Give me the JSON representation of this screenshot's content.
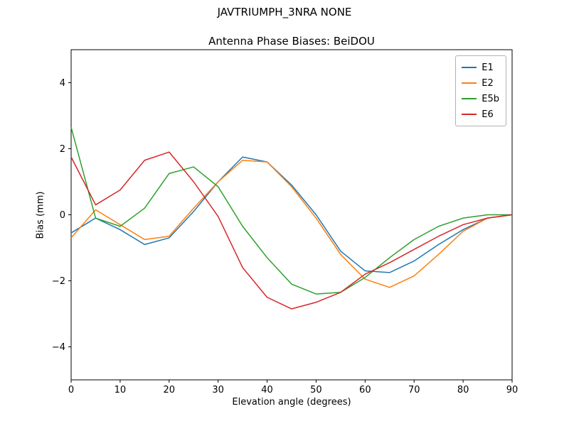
{
  "figure": {
    "suptitle": "JAVTRIUMPH_3NRA NONE",
    "title": "Antenna Phase Biases: BeiDOU"
  },
  "chart_data": {
    "type": "line",
    "suptitle": "JAVTRIUMPH_3NRA NONE",
    "title": "Antenna Phase Biases: BeiDOU",
    "xlabel": "Elevation angle (degrees)",
    "ylabel": "Bias (mm)",
    "xlim": [
      0,
      90
    ],
    "ylim": [
      -5,
      5
    ],
    "xticks": [
      0,
      10,
      20,
      30,
      40,
      50,
      60,
      70,
      80,
      90
    ],
    "yticks": [
      -4,
      -2,
      0,
      2,
      4
    ],
    "grid": false,
    "legend_position": "upper right",
    "x": [
      0,
      5,
      10,
      15,
      20,
      25,
      30,
      35,
      40,
      45,
      50,
      55,
      60,
      65,
      70,
      75,
      80,
      85,
      90
    ],
    "series": [
      {
        "name": "E1",
        "color": "#1f77b4",
        "values": [
          -0.55,
          -0.1,
          -0.45,
          -0.9,
          -0.7,
          0.1,
          1.0,
          1.75,
          1.6,
          0.9,
          0.0,
          -1.1,
          -1.7,
          -1.75,
          -1.4,
          -0.9,
          -0.45,
          -0.1,
          0.0
        ]
      },
      {
        "name": "E2",
        "color": "#ff7f0e",
        "values": [
          -0.7,
          0.15,
          -0.3,
          -0.75,
          -0.65,
          0.2,
          1.0,
          1.65,
          1.6,
          0.85,
          -0.1,
          -1.2,
          -1.95,
          -2.2,
          -1.85,
          -1.2,
          -0.5,
          -0.1,
          0.0
        ]
      },
      {
        "name": "E5b",
        "color": "#2ca02c",
        "values": [
          2.65,
          -0.1,
          -0.35,
          0.2,
          1.25,
          1.45,
          0.85,
          -0.35,
          -1.3,
          -2.1,
          -2.4,
          -2.35,
          -1.9,
          -1.3,
          -0.75,
          -0.35,
          -0.1,
          0.0,
          0.0
        ]
      },
      {
        "name": "E6",
        "color": "#d62728",
        "values": [
          1.75,
          0.3,
          0.75,
          1.65,
          1.9,
          1.0,
          -0.05,
          -1.6,
          -2.5,
          -2.85,
          -2.65,
          -2.35,
          -1.8,
          -1.45,
          -1.05,
          -0.65,
          -0.3,
          -0.1,
          0.0
        ]
      }
    ]
  }
}
